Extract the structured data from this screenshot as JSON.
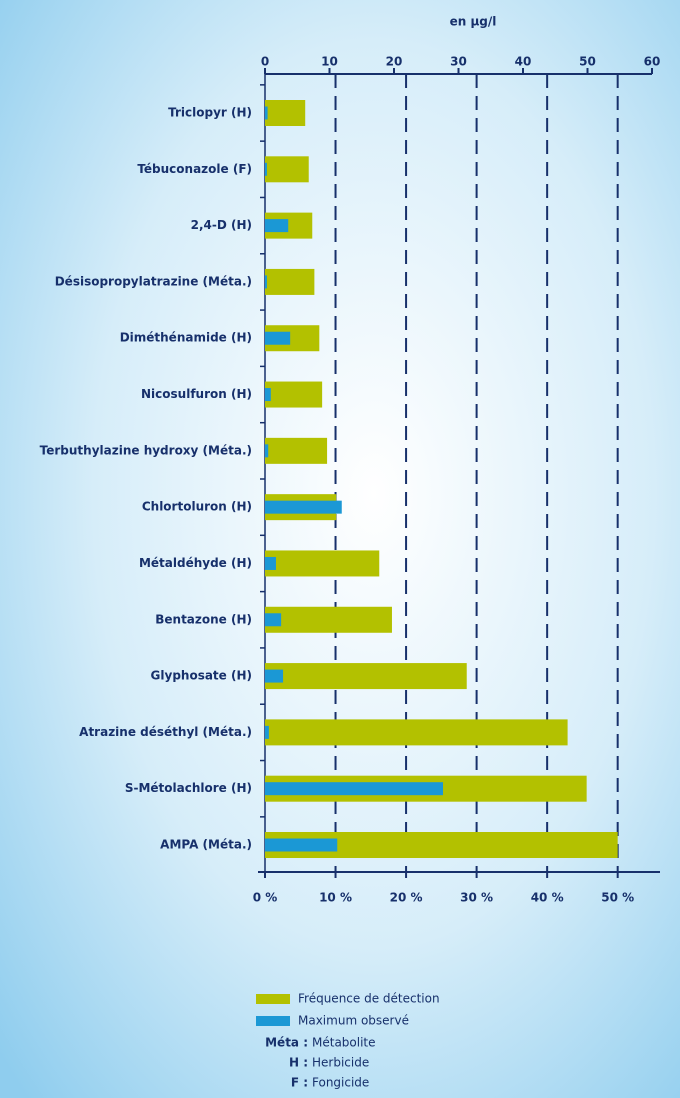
{
  "chart_data": {
    "type": "bar",
    "orientation": "horizontal",
    "x2_label": "en µg/l",
    "categories": [
      "Triclopyr (H)",
      "Tébuconazole (F)",
      "2,4-D (H)",
      "Désisopropylatrazine (Méta.)",
      "Diméthénamide (H)",
      "Nicosulfuron (H)",
      "Terbuthylazine hydroxy (Méta.)",
      "Chlortoluron (H)",
      "Métaldéhyde (H)",
      "Bentazone (H)",
      "Glyphosate (H)",
      "Atrazine déséthyl (Méta.)",
      "S-Métolachlore (H)",
      "AMPA (Méta.)"
    ],
    "series": [
      {
        "name": "Fréquence de détection",
        "color": "#b3c100",
        "axis": "x",
        "values": [
          5.7,
          6.2,
          6.7,
          7.0,
          7.7,
          8.1,
          8.8,
          10.1,
          16.2,
          18.0,
          28.6,
          42.9,
          45.6,
          50.0
        ]
      },
      {
        "name": "Maximum observé",
        "color": "#1b98d5",
        "axis": "x2",
        "values": [
          0.4,
          0.3,
          3.6,
          0.3,
          3.9,
          0.9,
          0.5,
          11.9,
          1.7,
          2.5,
          2.8,
          0.6,
          27.6,
          11.2
        ]
      }
    ],
    "xlim": [
      0,
      56
    ],
    "xticks": [
      {
        "value": 0,
        "label": "0 %"
      },
      {
        "value": 10,
        "label": "10 %"
      },
      {
        "value": 20,
        "label": "20 %"
      },
      {
        "value": 30,
        "label": "30 %"
      },
      {
        "value": 40,
        "label": "40 %"
      },
      {
        "value": 50,
        "label": "50 %"
      }
    ],
    "x2lim": [
      0,
      60
    ],
    "x2ticks": [
      0,
      10,
      20,
      30,
      40,
      50,
      60
    ],
    "grid": true,
    "notes": [
      {
        "abbr": "Méta :",
        "text": "Métabolite"
      },
      {
        "abbr": "H :",
        "text": "Herbicide"
      },
      {
        "abbr": "F :",
        "text": "Fongicide"
      }
    ]
  }
}
